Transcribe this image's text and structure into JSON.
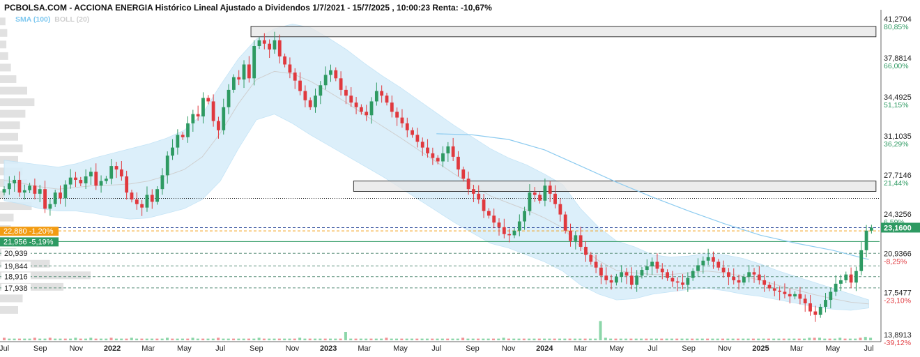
{
  "header": {
    "title": "PCBOLSA.COM - ACCIONA ENERGIA Histórico Lineal Ajustado a Dividendos 1/7/2021 - 15/7/2025 , 10:00:23 Renta: -10,67%",
    "legend_sma": "SMA (100)",
    "legend_boll": "BOLL (20)"
  },
  "colors": {
    "up": "#2e9a62",
    "down": "#e0393e",
    "band": "#d9eefa",
    "sma": "#8ccbf0",
    "orange": "#f39c12",
    "green_label": "#2e9a62"
  },
  "chart_data": {
    "type": "candlestick",
    "x_axis": {
      "ticks": [
        {
          "label": "Jul",
          "t": 0.0,
          "bold": false
        },
        {
          "label": "Sep",
          "t": 2.0,
          "bold": false
        },
        {
          "label": "Nov",
          "t": 4.0,
          "bold": false
        },
        {
          "label": "2022",
          "t": 6.0,
          "bold": true
        },
        {
          "label": "Mar",
          "t": 8.0,
          "bold": false
        },
        {
          "label": "May",
          "t": 10.0,
          "bold": false
        },
        {
          "label": "Jul",
          "t": 12.0,
          "bold": false
        },
        {
          "label": "Sep",
          "t": 14.0,
          "bold": false
        },
        {
          "label": "Nov",
          "t": 16.0,
          "bold": false
        },
        {
          "label": "2023",
          "t": 18.0,
          "bold": true
        },
        {
          "label": "Mar",
          "t": 20.0,
          "bold": false
        },
        {
          "label": "May",
          "t": 22.0,
          "bold": false
        },
        {
          "label": "Jul",
          "t": 24.0,
          "bold": false
        },
        {
          "label": "Sep",
          "t": 26.0,
          "bold": false
        },
        {
          "label": "Nov",
          "t": 28.0,
          "bold": false
        },
        {
          "label": "2024",
          "t": 30.0,
          "bold": true
        },
        {
          "label": "Mar",
          "t": 32.0,
          "bold": false
        },
        {
          "label": "May",
          "t": 34.0,
          "bold": false
        },
        {
          "label": "Jul",
          "t": 36.0,
          "bold": false
        },
        {
          "label": "Sep",
          "t": 38.0,
          "bold": false
        },
        {
          "label": "Nov",
          "t": 40.0,
          "bold": false
        },
        {
          "label": "2025",
          "t": 42.0,
          "bold": true
        },
        {
          "label": "Mar",
          "t": 44.0,
          "bold": false
        },
        {
          "label": "May",
          "t": 46.0,
          "bold": false
        },
        {
          "label": "Jul",
          "t": 48.0,
          "bold": false
        }
      ],
      "range_months": [
        0,
        48.6
      ]
    },
    "y_axis": {
      "range": [
        13.4,
        41.8
      ],
      "ticks": [
        {
          "value": 41.2704,
          "label": "41,2704",
          "pct": "80,85%",
          "sign": "pos"
        },
        {
          "value": 37.8814,
          "label": "37,8814",
          "pct": "66,00%",
          "sign": "pos"
        },
        {
          "value": 34.4925,
          "label": "34,4925",
          "pct": "51,15%",
          "sign": "pos"
        },
        {
          "value": 31.1035,
          "label": "31,1035",
          "pct": "36,29%",
          "sign": "pos"
        },
        {
          "value": 27.7146,
          "label": "27,7146",
          "pct": "21,44%",
          "sign": "pos"
        },
        {
          "value": 24.3256,
          "label": "24,3256",
          "pct": "6,59%",
          "sign": "pos"
        },
        {
          "value": 20.9366,
          "label": "20,9366",
          "pct": "-8,25%",
          "sign": "neg"
        },
        {
          "value": 17.5477,
          "label": "17,5477",
          "pct": "-23,10%",
          "sign": "neg"
        },
        {
          "value": 13.8913,
          "label": "13,8913",
          "pct": "-39,12%",
          "sign": "neg"
        }
      ]
    },
    "last_price": {
      "value": 23.16,
      "label": "23,1600"
    },
    "left_labels": [
      {
        "value": 22.88,
        "label": "22,880 -1,20%",
        "style": "orange"
      },
      {
        "value": 21.956,
        "label": "21,956 -5,19%",
        "style": "green"
      },
      {
        "value": 20.939,
        "label": "20,939",
        "style": "plain"
      },
      {
        "value": 19.844,
        "label": "19,844",
        "style": "plain"
      },
      {
        "value": 18.916,
        "label": "18,916",
        "style": "plain"
      },
      {
        "value": 17.938,
        "label": "17,938",
        "style": "plain"
      }
    ],
    "resistance_zones": [
      {
        "t_start": 13.7,
        "t_end": 48.4,
        "low": 39.7,
        "high": 40.6
      },
      {
        "t_start": 19.4,
        "t_end": 48.4,
        "low": 26.3,
        "high": 27.2
      }
    ],
    "dotted_level": 25.7,
    "weekly_close": [
      26.5,
      27.0,
      27.3,
      26.2,
      26.4,
      26.8,
      26.1,
      26.5,
      24.8,
      25.2,
      26.2,
      25.7,
      26.9,
      27.5,
      27.3,
      27.0,
      27.6,
      28.0,
      26.8,
      27.2,
      27.4,
      28.5,
      28.2,
      27.6,
      26.2,
      25.6,
      25.2,
      24.9,
      26.0,
      25.4,
      26.5,
      27.7,
      29.4,
      30.1,
      31.2,
      31.0,
      32.2,
      33.0,
      32.8,
      34.4,
      34.1,
      32.4,
      31.6,
      33.6,
      35.1,
      36.2,
      36.0,
      37.3,
      36.1,
      38.9,
      39.4,
      39.1,
      38.6,
      39.4,
      38.0,
      37.3,
      36.6,
      35.9,
      35.0,
      34.2,
      33.6,
      34.6,
      35.5,
      36.4,
      36.8,
      36.1,
      35.1,
      34.6,
      34.0,
      33.6,
      33.2,
      32.9,
      34.1,
      35.0,
      34.6,
      34.0,
      33.2,
      32.7,
      32.2,
      31.6,
      31.2,
      30.6,
      30.1,
      29.6,
      29.2,
      28.9,
      29.6,
      30.2,
      29.3,
      28.2,
      27.4,
      26.5,
      26.1,
      25.6,
      24.6,
      24.2,
      23.6,
      23.2,
      22.6,
      22.5,
      22.9,
      23.7,
      24.6,
      26.2,
      26.0,
      25.5,
      26.8,
      26.1,
      25.2,
      24.3,
      22.9,
      22.0,
      22.5,
      21.5,
      20.8,
      20.2,
      19.7,
      19.0,
      18.6,
      18.4,
      18.9,
      19.3,
      19.0,
      18.2,
      19.0,
      19.5,
      19.8,
      20.2,
      19.6,
      19.3,
      18.8,
      18.5,
      18.4,
      18.2,
      18.8,
      19.4,
      19.9,
      20.3,
      20.6,
      20.2,
      19.7,
      19.3,
      18.9,
      18.6,
      18.4,
      18.9,
      19.3,
      19.1,
      18.6,
      18.2,
      17.9,
      17.7,
      17.6,
      17.4,
      17.2,
      17.4,
      17.0,
      16.6,
      15.9,
      15.6,
      16.3,
      16.9,
      17.6,
      18.3,
      18.6,
      19.1,
      18.4,
      19.4,
      21.2,
      22.9,
      23.16
    ],
    "bollinger_upper": [
      29.0,
      28.8,
      28.6,
      28.4,
      28.7,
      29.2,
      29.6,
      30.0,
      30.4,
      30.9,
      31.6,
      33.0,
      35.5,
      37.8,
      39.5,
      40.4,
      40.8,
      40.5,
      39.6,
      38.6,
      37.4,
      36.3,
      35.3,
      34.2,
      33.1,
      32.0,
      31.0,
      30.0,
      29.2,
      28.6,
      27.8,
      26.9,
      24.8,
      23.2,
      22.0,
      21.5,
      20.8,
      20.6,
      20.7,
      20.9,
      20.8,
      20.5,
      20.0,
      19.4,
      18.9,
      18.4,
      17.9,
      17.4,
      16.9
    ],
    "bollinger_lower": [
      25.5,
      25.2,
      24.8,
      24.6,
      24.6,
      24.4,
      24.1,
      23.9,
      24.0,
      24.4,
      24.8,
      25.6,
      27.2,
      30.0,
      32.5,
      33.0,
      32.2,
      31.2,
      30.3,
      29.4,
      28.5,
      27.6,
      26.6,
      25.6,
      24.6,
      23.6,
      22.7,
      21.8,
      21.4,
      20.8,
      20.2,
      19.4,
      18.2,
      17.4,
      16.9,
      17.0,
      17.4,
      17.6,
      17.8,
      17.9,
      17.7,
      17.4,
      17.2,
      16.9,
      16.6,
      16.3,
      16.1,
      16.0,
      16.2
    ],
    "sma_100": [
      {
        "t": 24.0,
        "v": 31.3
      },
      {
        "t": 26.0,
        "v": 31.2
      },
      {
        "t": 28.0,
        "v": 30.8
      },
      {
        "t": 30.0,
        "v": 29.9
      },
      {
        "t": 32.0,
        "v": 28.5
      },
      {
        "t": 34.0,
        "v": 27.1
      },
      {
        "t": 36.0,
        "v": 25.8
      },
      {
        "t": 38.0,
        "v": 24.6
      },
      {
        "t": 40.0,
        "v": 23.5
      },
      {
        "t": 42.0,
        "v": 22.5
      },
      {
        "t": 44.0,
        "v": 21.8
      },
      {
        "t": 46.0,
        "v": 21.2
      },
      {
        "t": 48.0,
        "v": 20.4
      }
    ],
    "volume": [
      0.3,
      0.2,
      0.2,
      0.2,
      0.2,
      0.2,
      0.3,
      0.2,
      0.2,
      0.3,
      0.2,
      0.2,
      0.2,
      0.2,
      0.3,
      0.2,
      0.2,
      0.3,
      0.2,
      0.2,
      0.2,
      0.3,
      0.2,
      0.2,
      0.2,
      0.3,
      0.2,
      0.2,
      0.2,
      0.2,
      0.2,
      0.2,
      0.3,
      0.2,
      0.2,
      0.2,
      0.2,
      0.3,
      0.2,
      0.2,
      0.2,
      0.2,
      0.3,
      0.2,
      0.2,
      0.2,
      0.2,
      0.2,
      0.2,
      0.2,
      0.3,
      0.2,
      0.2,
      0.2,
      0.2,
      0.2,
      0.2,
      0.2,
      0.3,
      0.2,
      0.2,
      0.2,
      0.2,
      0.2,
      0.2,
      0.2,
      0.2,
      1.0,
      0.2,
      0.2,
      0.2,
      0.2,
      0.2,
      0.2,
      0.2,
      0.3,
      0.2,
      0.2,
      0.2,
      0.2,
      0.2,
      0.2,
      0.2,
      0.2,
      0.2,
      0.2,
      0.2,
      0.2,
      0.2,
      0.2,
      0.3,
      0.2,
      0.2,
      0.2,
      0.2,
      0.2,
      0.2,
      0.2,
      0.3,
      0.2,
      0.2,
      0.2,
      0.2,
      0.2,
      0.2,
      0.2,
      0.2,
      0.2,
      0.2,
      0.2,
      0.2,
      0.2,
      0.2,
      0.2,
      0.2,
      0.2,
      0.2,
      2.3,
      0.3,
      0.2,
      0.2,
      0.2,
      0.2,
      0.2,
      0.2,
      0.2,
      0.2,
      0.2,
      0.2,
      0.2,
      0.2,
      0.2,
      0.2,
      0.2,
      0.2,
      0.2,
      0.2,
      0.2,
      0.2,
      0.2,
      0.2,
      0.2,
      0.2,
      0.2,
      0.2,
      0.2,
      0.2,
      0.2,
      0.2,
      0.2,
      0.2,
      0.2,
      0.2,
      0.2,
      0.2,
      0.2,
      0.2,
      0.2,
      0.3,
      0.3,
      0.3,
      0.2,
      0.2,
      0.2,
      0.3,
      0.2,
      0.2,
      0.2,
      0.3,
      0.4,
      0.3
    ],
    "volume_profile": [
      {
        "price": 41.0,
        "w": 0.06
      },
      {
        "price": 40.0,
        "w": 0.08
      },
      {
        "price": 39.0,
        "w": 0.07
      },
      {
        "price": 38.0,
        "w": 0.09
      },
      {
        "price": 37.0,
        "w": 0.12
      },
      {
        "price": 36.0,
        "w": 0.18
      },
      {
        "price": 35.0,
        "w": 0.3
      },
      {
        "price": 34.0,
        "w": 0.38
      },
      {
        "price": 33.0,
        "w": 0.28
      },
      {
        "price": 32.0,
        "w": 0.22
      },
      {
        "price": 31.0,
        "w": 0.2
      },
      {
        "price": 30.0,
        "w": 0.25
      },
      {
        "price": 29.0,
        "w": 0.2
      },
      {
        "price": 28.0,
        "w": 0.25
      },
      {
        "price": 27.0,
        "w": 0.3
      },
      {
        "price": 26.0,
        "w": 0.4
      },
      {
        "price": 25.0,
        "w": 0.35
      },
      {
        "price": 24.0,
        "w": 0.15
      },
      {
        "price": 23.0,
        "w": 0.12
      },
      {
        "price": 22.0,
        "w": 0.1
      },
      {
        "price": 21.0,
        "w": 0.18
      },
      {
        "price": 20.0,
        "w": 0.55
      },
      {
        "price": 19.0,
        "w": 1.0
      },
      {
        "price": 18.0,
        "w": 0.7
      },
      {
        "price": 17.0,
        "w": 0.25
      },
      {
        "price": 16.0,
        "w": 0.2
      }
    ]
  }
}
